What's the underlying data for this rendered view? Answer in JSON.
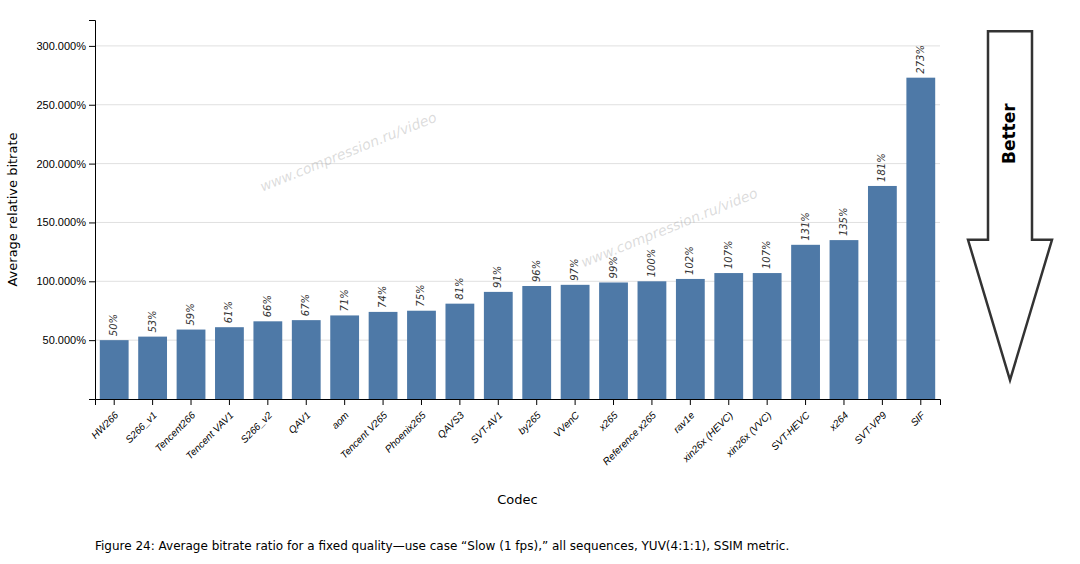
{
  "chart_data": {
    "type": "bar",
    "xlabel": "Codec",
    "ylabel": "Average relative bitrate",
    "categories": [
      "HW266",
      "S266_v1",
      "Tencent266",
      "Tencent VAV1",
      "S266_v2",
      "QAV1",
      "aom",
      "Tencent V265",
      "Phoenix265",
      "QAVS3",
      "SVT-AV1",
      "by265",
      "VVenC",
      "x265",
      "Reference x265",
      "rav1e",
      "xin26x (HEVC)",
      "xin26x (VVC)",
      "SVT-HEVC",
      "x264",
      "SVT-VP9",
      "SIF"
    ],
    "values": [
      50,
      53,
      59,
      61,
      66,
      67,
      71,
      74,
      75,
      81,
      91,
      96,
      97,
      99,
      100,
      102,
      107,
      107,
      131,
      135,
      181,
      273
    ],
    "value_labels": [
      "50%",
      "53%",
      "59%",
      "61%",
      "66%",
      "67%",
      "71%",
      "74%",
      "75%",
      "81%",
      "91%",
      "96%",
      "97%",
      "99%",
      "100%",
      "102%",
      "107%",
      "107%",
      "131%",
      "135%",
      "181%",
      "273%"
    ],
    "data_labels": true,
    "ylim": [
      0,
      322
    ],
    "yticks": [
      {
        "value": 50,
        "label": "50.000%"
      },
      {
        "value": 100,
        "label": "100.000%"
      },
      {
        "value": 150,
        "label": "150.000%"
      },
      {
        "value": 200,
        "label": "200.000%"
      },
      {
        "value": 250,
        "label": "250.000%"
      },
      {
        "value": 300,
        "label": "300.000%"
      }
    ],
    "grid": true,
    "caption": "Figure 24: Average bitrate ratio for a fixed quality—use case “Slow (1 fps),” all sequences, YUV(4:1:1), SSIM metric.",
    "annotations": [
      {
        "text": "Better"
      },
      {
        "text": "www.compression.ru/video"
      },
      {
        "text": "www.compression.ru/video"
      }
    ]
  }
}
